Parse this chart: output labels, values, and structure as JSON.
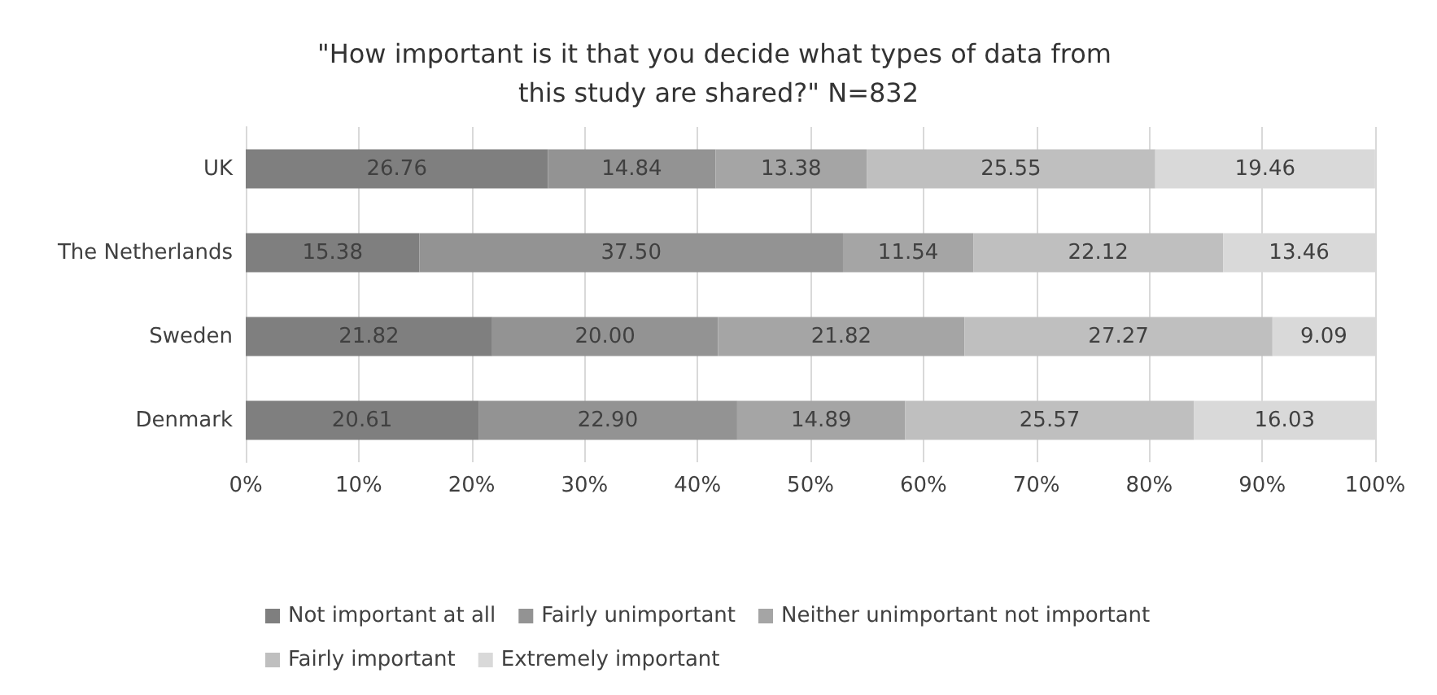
{
  "chart_data": {
    "type": "bar",
    "title": "\"How important is it that you decide what types of data from this study are shared?\" N=832",
    "orientation": "horizontal",
    "stacked": true,
    "categories": [
      "UK",
      "The Netherlands",
      "Sweden",
      "Denmark"
    ],
    "series": [
      {
        "name": "Not important at all",
        "color": "#7f7f7f",
        "values": [
          26.76,
          15.38,
          21.82,
          20.61
        ],
        "value_labels": [
          "26.76",
          "15.38",
          "21.82",
          "20.61"
        ]
      },
      {
        "name": "Fairly unimportant",
        "color": "#939393",
        "values": [
          14.84,
          37.5,
          20.0,
          22.9
        ],
        "value_labels": [
          "14.84",
          "37.50",
          "20.00",
          "22.90"
        ]
      },
      {
        "name": "Neither unimportant not important",
        "color": "#a5a5a5",
        "values": [
          13.38,
          11.54,
          21.82,
          14.89
        ],
        "value_labels": [
          "13.38",
          "11.54",
          "21.82",
          "14.89"
        ]
      },
      {
        "name": "Fairly important",
        "color": "#bfbfbf",
        "values": [
          25.55,
          22.12,
          27.27,
          25.57
        ],
        "value_labels": [
          "25.55",
          "22.12",
          "27.27",
          "25.57"
        ]
      },
      {
        "name": "Extremely important",
        "color": "#d9d9d9",
        "values": [
          19.46,
          13.46,
          9.09,
          16.03
        ],
        "value_labels": [
          "19.46",
          "13.46",
          "9.09",
          "16.03"
        ]
      }
    ],
    "xlim": [
      0,
      100
    ],
    "xticks": [
      {
        "value": 0,
        "label": "0%"
      },
      {
        "value": 10,
        "label": "10%"
      },
      {
        "value": 20,
        "label": "20%"
      },
      {
        "value": 30,
        "label": "30%"
      },
      {
        "value": 40,
        "label": "40%"
      },
      {
        "value": 50,
        "label": "50%"
      },
      {
        "value": 60,
        "label": "60%"
      },
      {
        "value": 70,
        "label": "70%"
      },
      {
        "value": 80,
        "label": "80%"
      },
      {
        "value": 90,
        "label": "90%"
      },
      {
        "value": 100,
        "label": "100%"
      }
    ],
    "grid": "x",
    "legend": "bottom"
  }
}
